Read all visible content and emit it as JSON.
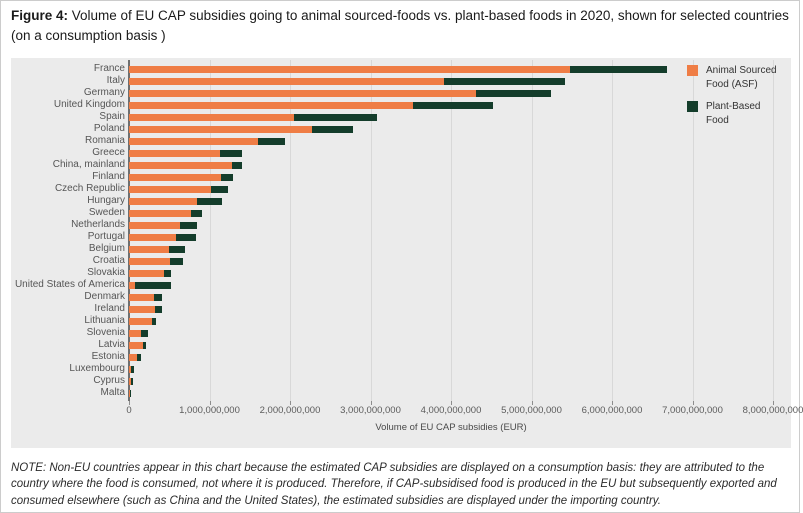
{
  "header": {
    "figure_label": "Figure 4:",
    "title_rest": " Volume of EU CAP subsidies going to animal sourced-foods vs. plant-based foods in 2020, shown for selected countries (on a consumption basis )"
  },
  "note": {
    "text": "NOTE: Non-EU countries appear in this chart because the estimated CAP subsidies are displayed on a consumption basis: they are attributed to the country where the food is consumed, not where it is produced. Therefore, if CAP-subsidised food is produced in the EU but subsequently exported and consumed elsewhere (such as China and the United States), the estimated subsidies are displayed under the importing country."
  },
  "colors": {
    "asf": "#EF7D45",
    "pbf": "#143D2B",
    "panel_background": "#EBEBEB",
    "gridline": "#D8D8D8",
    "axis": "#6F6F6F"
  },
  "chart_data": {
    "type": "bar",
    "orientation": "horizontal",
    "stacked": true,
    "title": "Volume of EU CAP subsidies going to animal sourced-foods vs. plant-based foods in 2020",
    "xlabel": "Volume of EU CAP subsidies (EUR)",
    "ylabel": "",
    "xlim": [
      0,
      8000000000
    ],
    "grid": true,
    "legend_position": "top-right",
    "x_ticks": [
      "0",
      "1,000,000,000",
      "2,000,000,000",
      "3,000,000,000",
      "4,000,000,000",
      "5,000,000,000",
      "6,000,000,000",
      "7,000,000,000",
      "8,000,000,000"
    ],
    "categories": [
      "France",
      "Italy",
      "Germany",
      "United Kingdom",
      "Spain",
      "Poland",
      "Romania",
      "Greece",
      "China, mainland",
      "Finland",
      "Czech Republic",
      "Hungary",
      "Sweden",
      "Netherlands",
      "Portugal",
      "Belgium",
      "Croatia",
      "Slovakia",
      "United States of America",
      "Denmark",
      "Ireland",
      "Lithuania",
      "Slovenia",
      "Latvia",
      "Estonia",
      "Luxembourg",
      "Cyprus",
      "Malta"
    ],
    "series": [
      {
        "name": "Animal Sourced Food (ASF)",
        "color": "#EF7D45",
        "values": [
          5480000000,
          3910000000,
          4310000000,
          3530000000,
          2050000000,
          2270000000,
          1600000000,
          1130000000,
          1280000000,
          1140000000,
          1020000000,
          840000000,
          770000000,
          630000000,
          580000000,
          500000000,
          510000000,
          430000000,
          70000000,
          310000000,
          320000000,
          280000000,
          150000000,
          170000000,
          100000000,
          30000000,
          25000000,
          10000000
        ]
      },
      {
        "name": "Plant-Based Food",
        "color": "#143D2B",
        "values": [
          1200000000,
          1510000000,
          930000000,
          990000000,
          1030000000,
          510000000,
          340000000,
          270000000,
          120000000,
          150000000,
          210000000,
          320000000,
          140000000,
          210000000,
          250000000,
          200000000,
          160000000,
          90000000,
          450000000,
          100000000,
          90000000,
          60000000,
          90000000,
          40000000,
          50000000,
          30000000,
          20000000,
          10000000
        ]
      }
    ]
  }
}
